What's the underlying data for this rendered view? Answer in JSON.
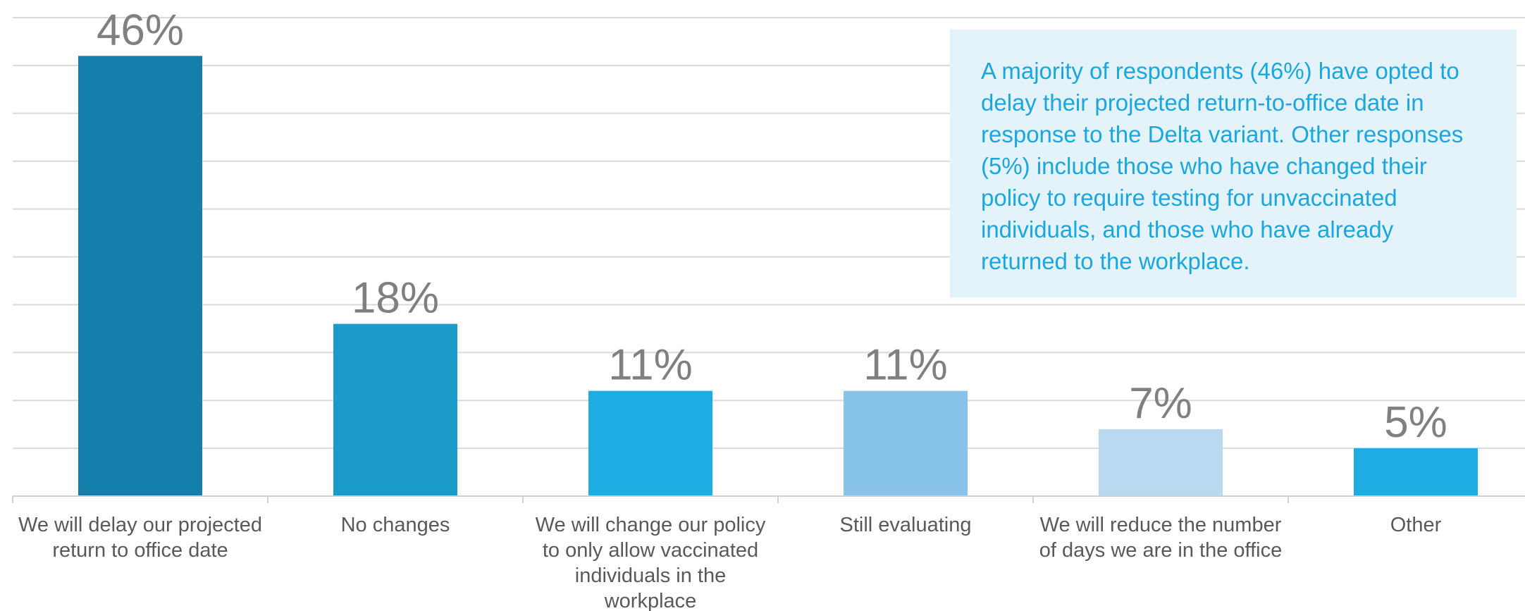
{
  "chart_data": {
    "type": "bar",
    "categories": [
      "We will delay our projected return to office date",
      "No changes",
      "We will change our policy to only allow vaccinated individuals in the workplace",
      "Still evaluating",
      "We will reduce the number of days we are in the office",
      "Other"
    ],
    "category_lines": [
      [
        "We will delay our projected",
        "return to office date"
      ],
      [
        "No changes"
      ],
      [
        "We will change our policy",
        "to only allow vaccinated",
        "individuals in the",
        "workplace"
      ],
      [
        "Still evaluating"
      ],
      [
        "We will reduce the number",
        "of days we are in the office"
      ],
      [
        "Other"
      ]
    ],
    "values": [
      46,
      18,
      11,
      11,
      7,
      5
    ],
    "data_labels": [
      "46%",
      "18%",
      "11%",
      "11%",
      "7%",
      "5%"
    ],
    "bar_colors": [
      "#137faa",
      "#1a9bca",
      "#1eade3",
      "#88c4ea",
      "#b9d9f0",
      "#1eade3"
    ],
    "ylim": [
      0,
      50
    ],
    "grid": true
  },
  "note": {
    "text": "A majority of respondents (46%) have opted to delay their projected return-to-office date in response to the Delta variant. Other responses (5%) include those who have changed their policy to require testing for unvaccinated individuals, and those who have already returned to the workplace.",
    "lines": [
      "A majority of respondents (46%) have opted to",
      "delay their projected return-to-office date in",
      "response to the Delta variant. Other responses",
      "(5%) include those who have changed their",
      "policy to require testing for unvaccinated",
      "individuals, and those who have already",
      "returned to the workplace."
    ]
  }
}
